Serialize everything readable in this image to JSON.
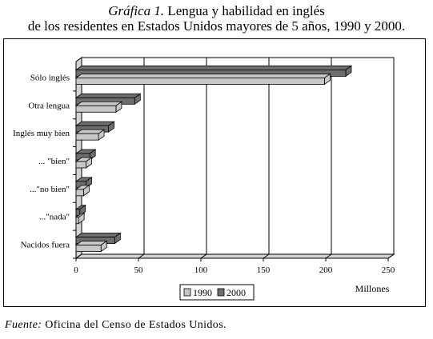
{
  "title": {
    "label": "Gráfica 1.",
    "line1": "Lengua y habilidad en inglés",
    "line2": "de los residentes en Estados Unidos mayores de 5 años, 1990 y 2000."
  },
  "source": {
    "label": "Fuente:",
    "text": "Oficina del Censo de Estados Unidos."
  },
  "colors": {
    "series_1990": "#c8c8c8",
    "series_2000": "#6e6e6e",
    "plot_background": "#ffffff",
    "wall": "#d4d4d4"
  },
  "chart_data": {
    "type": "bar",
    "orientation": "horizontal",
    "style": "3d",
    "categories": [
      "Sólo inglés",
      "Otra lengua",
      "Inglés muy bien",
      "... \"bien\"",
      "...\"no bien\"",
      "...\"nada\"",
      "Nacidos fuera"
    ],
    "series": [
      {
        "name": "1990",
        "values": [
          199,
          32,
          18,
          8,
          6,
          2,
          20
        ]
      },
      {
        "name": "2000",
        "values": [
          216,
          47,
          26,
          11,
          8,
          3,
          31
        ]
      }
    ],
    "xlabel": "Millones",
    "ylabel": "",
    "xlim": [
      0,
      250
    ],
    "xticks": [
      0,
      50,
      100,
      150,
      200,
      250
    ],
    "grid": true,
    "legend": "bottom-center"
  }
}
